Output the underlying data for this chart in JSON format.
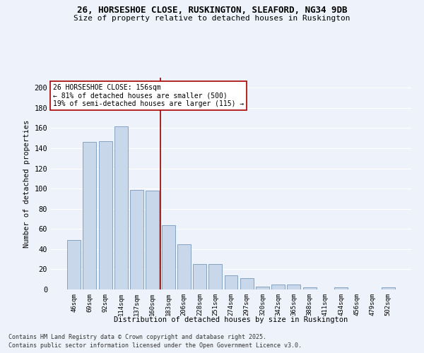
{
  "title_line1": "26, HORSESHOE CLOSE, RUSKINGTON, SLEAFORD, NG34 9DB",
  "title_line2": "Size of property relative to detached houses in Ruskington",
  "xlabel": "Distribution of detached houses by size in Ruskington",
  "ylabel": "Number of detached properties",
  "categories": [
    "46sqm",
    "69sqm",
    "92sqm",
    "114sqm",
    "137sqm",
    "160sqm",
    "183sqm",
    "206sqm",
    "228sqm",
    "251sqm",
    "274sqm",
    "297sqm",
    "320sqm",
    "342sqm",
    "365sqm",
    "388sqm",
    "411sqm",
    "434sqm",
    "456sqm",
    "479sqm",
    "502sqm"
  ],
  "values": [
    49,
    146,
    147,
    162,
    99,
    98,
    64,
    45,
    25,
    25,
    14,
    11,
    3,
    5,
    5,
    2,
    0,
    2,
    0,
    0,
    2
  ],
  "bar_color": "#c8d8ea",
  "bar_edge_color": "#7799bb",
  "background_color": "#eef2fa",
  "grid_color": "#ffffff",
  "annotation_text": "26 HORSESHOE CLOSE: 156sqm\n← 81% of detached houses are smaller (500)\n19% of semi-detached houses are larger (115) →",
  "vline_x": 5.5,
  "vline_color": "#990000",
  "annotation_box_color": "#ffffff",
  "annotation_box_edge": "#aa0000",
  "footer_line1": "Contains HM Land Registry data © Crown copyright and database right 2025.",
  "footer_line2": "Contains public sector information licensed under the Open Government Licence v3.0.",
  "ylim": [
    0,
    210
  ],
  "yticks": [
    0,
    20,
    40,
    60,
    80,
    100,
    120,
    140,
    160,
    180,
    200
  ]
}
